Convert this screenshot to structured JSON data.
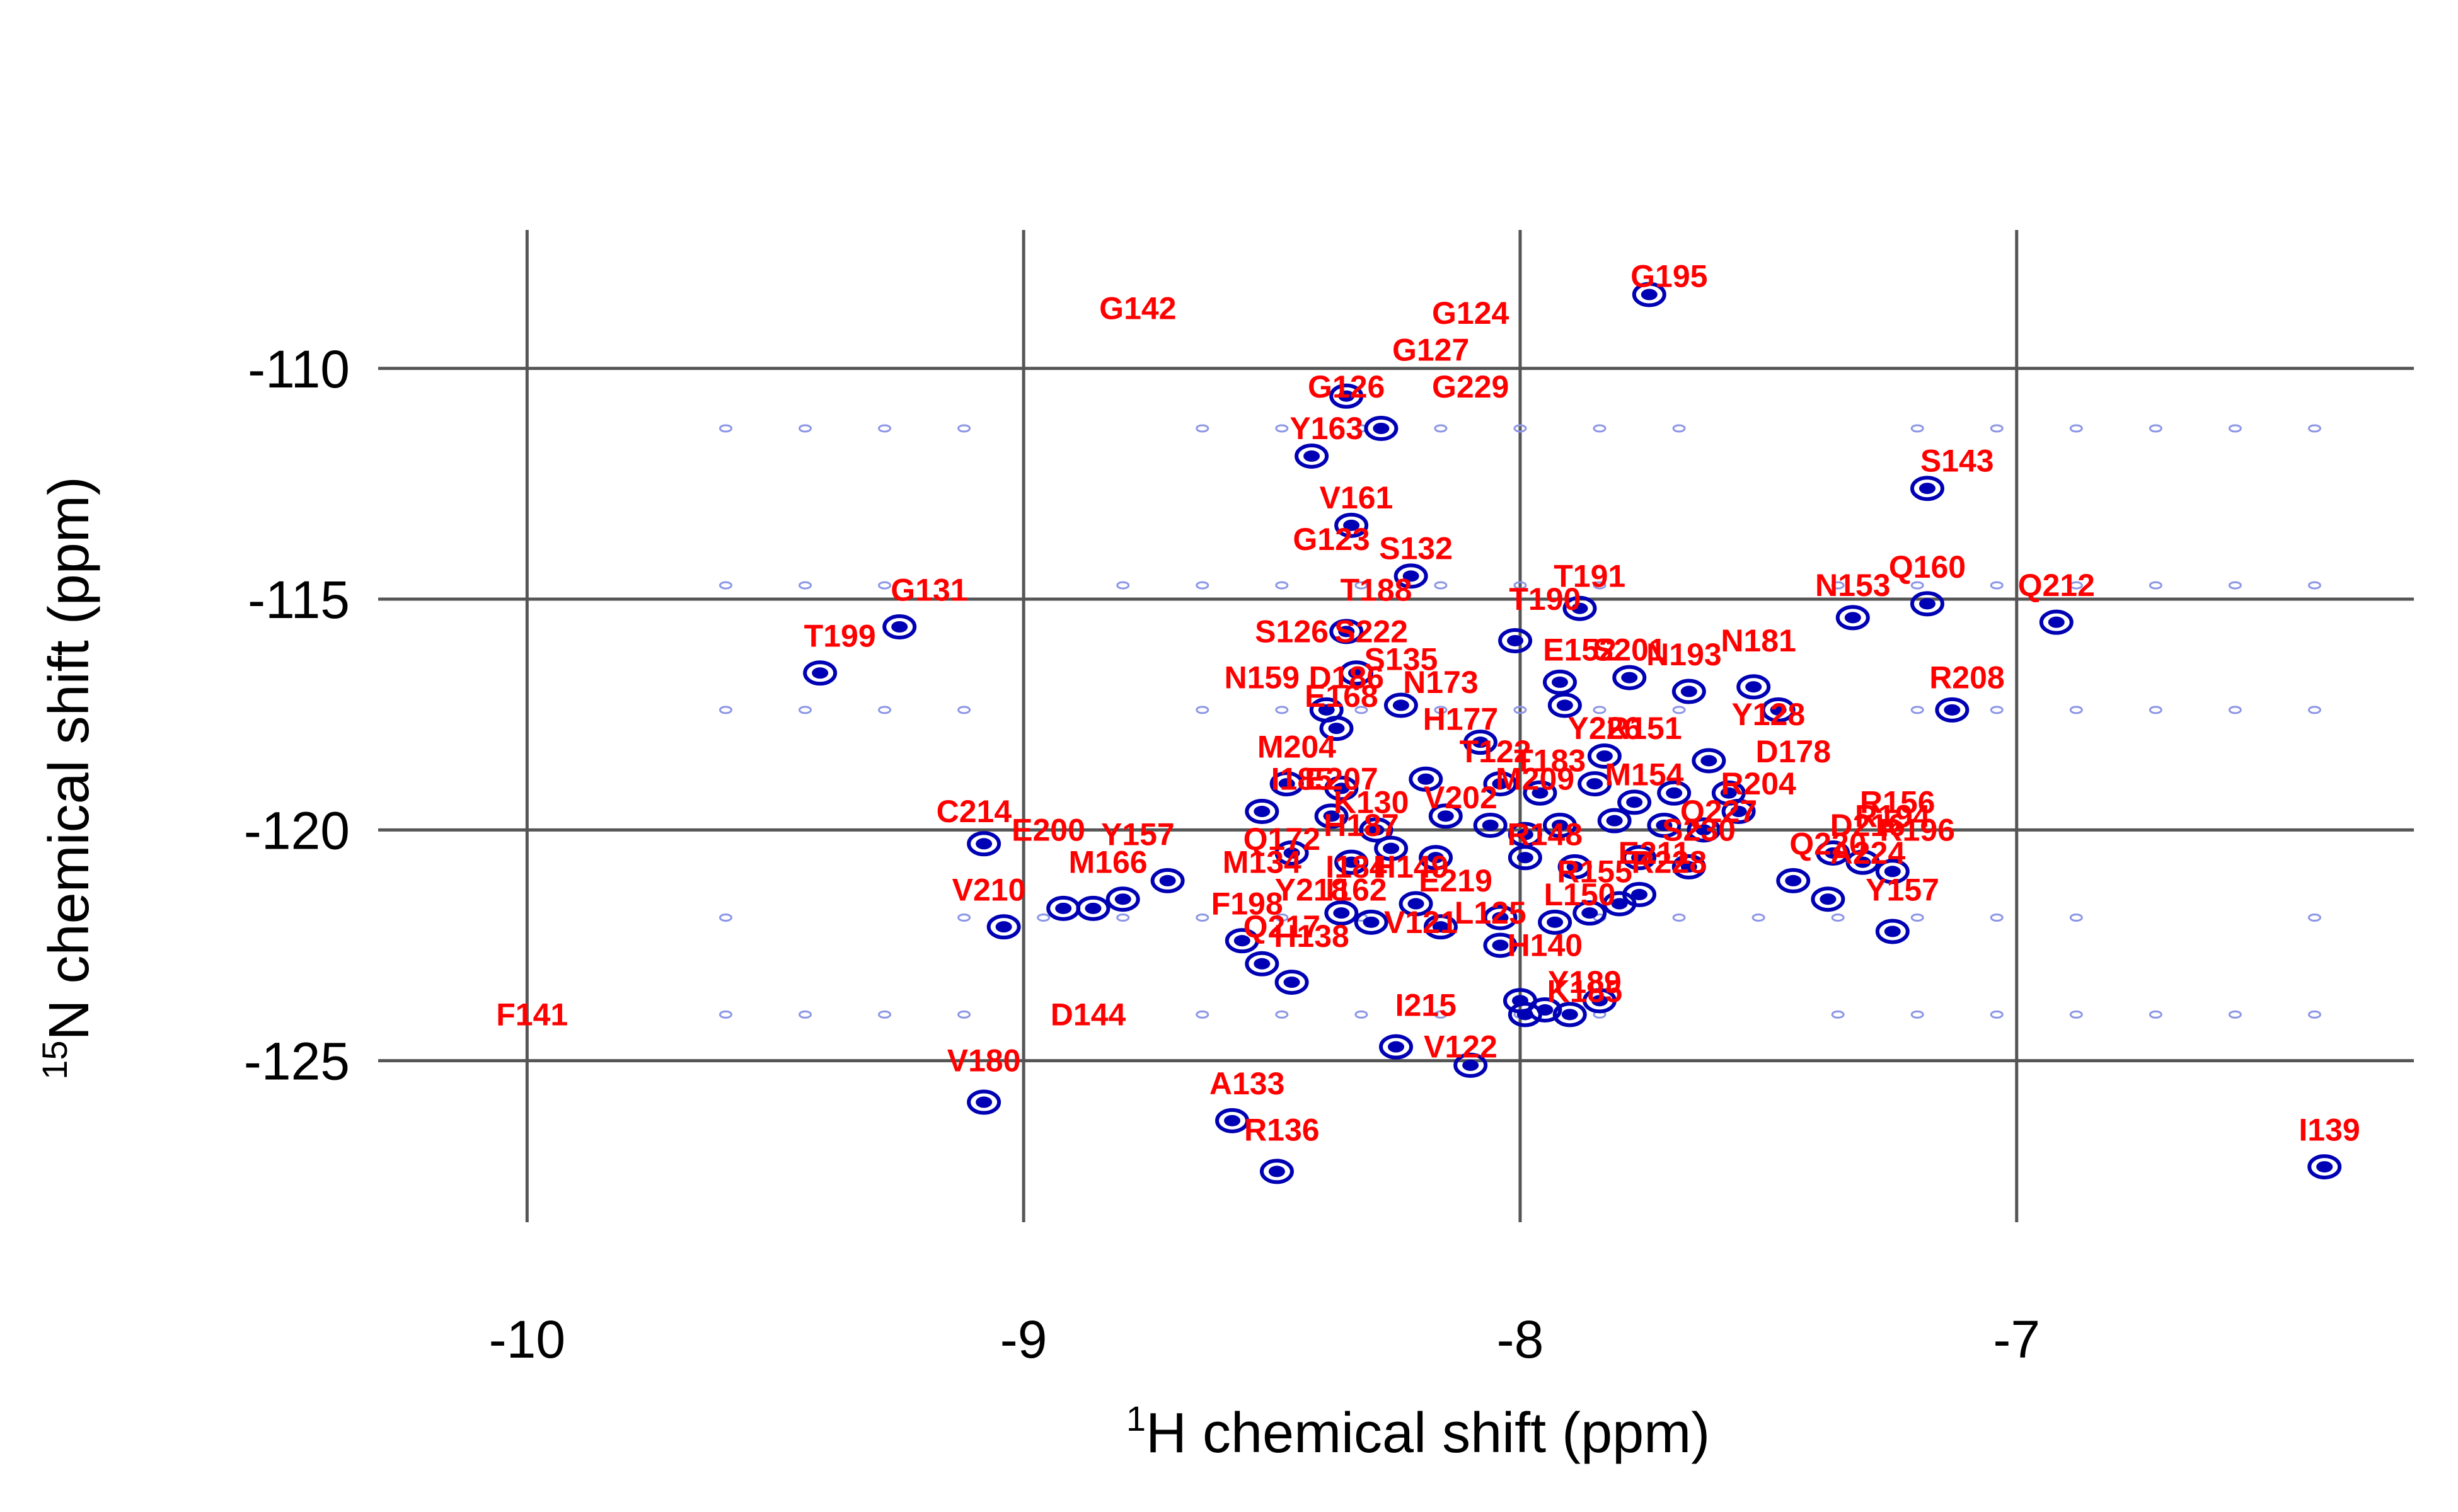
{
  "chart_data": {
    "type": "scatter",
    "xlabel": {
      "sup": "1",
      "text": "H chemical shift (ppm)"
    },
    "ylabel": {
      "sup": "15",
      "text": "N chemical shift (ppm)"
    },
    "xlim": [
      -10.3,
      -6.2
    ],
    "ylim": [
      -128.5,
      -107.0
    ],
    "x_ticks": [
      -10,
      -9,
      -8,
      -7
    ],
    "x_tick_labels": [
      "-10",
      "-9",
      "-8",
      "-7"
    ],
    "y_ticks": [
      -110,
      -115,
      -120,
      -125
    ],
    "y_tick_labels": [
      "-110",
      "-115",
      "-120",
      "-125"
    ],
    "grid": true,
    "colors": {
      "peak": "#0000b4",
      "noise": "#8c96e6",
      "label": "#ff0000",
      "grid": "#555555"
    },
    "labels": [
      {
        "text": "G195",
        "x": -7.7,
        "y": -108.0
      },
      {
        "text": "G142",
        "x": -8.77,
        "y": -108.7
      },
      {
        "text": "G124",
        "x": -8.1,
        "y": -108.8
      },
      {
        "text": "G127",
        "x": -8.18,
        "y": -109.6
      },
      {
        "text": "G126",
        "x": -8.35,
        "y": -110.4
      },
      {
        "text": "G229",
        "x": -8.1,
        "y": -110.4
      },
      {
        "text": "Y163",
        "x": -8.39,
        "y": -111.3
      },
      {
        "text": "S143",
        "x": -7.12,
        "y": -112.0
      },
      {
        "text": "V161",
        "x": -8.33,
        "y": -112.8
      },
      {
        "text": "G123",
        "x": -8.38,
        "y": -113.7
      },
      {
        "text": "S132",
        "x": -8.21,
        "y": -113.9
      },
      {
        "text": "T191",
        "x": -7.86,
        "y": -114.5
      },
      {
        "text": "Q160",
        "x": -7.18,
        "y": -114.3
      },
      {
        "text": "N153",
        "x": -7.33,
        "y": -114.7
      },
      {
        "text": "Q212",
        "x": -6.92,
        "y": -114.7
      },
      {
        "text": "G131",
        "x": -9.19,
        "y": -114.8
      },
      {
        "text": "T188",
        "x": -8.29,
        "y": -114.8
      },
      {
        "text": "T190",
        "x": -7.95,
        "y": -115.0
      },
      {
        "text": "T199",
        "x": -9.37,
        "y": -115.8
      },
      {
        "text": "S126",
        "x": -8.46,
        "y": -115.7
      },
      {
        "text": "S222",
        "x": -8.3,
        "y": -115.7
      },
      {
        "text": "S135",
        "x": -8.24,
        "y": -116.3
      },
      {
        "text": "E152",
        "x": -7.88,
        "y": -116.1
      },
      {
        "text": "S201",
        "x": -7.78,
        "y": -116.1
      },
      {
        "text": "N193",
        "x": -7.67,
        "y": -116.2
      },
      {
        "text": "N181",
        "x": -7.52,
        "y": -115.9
      },
      {
        "text": "N159",
        "x": -8.52,
        "y": -116.7
      },
      {
        "text": "D186",
        "x": -8.35,
        "y": -116.7
      },
      {
        "text": "N173",
        "x": -8.16,
        "y": -116.8
      },
      {
        "text": "E168",
        "x": -8.36,
        "y": -117.1
      },
      {
        "text": "R208",
        "x": -7.1,
        "y": -116.7
      },
      {
        "text": "H177",
        "x": -8.12,
        "y": -117.6
      },
      {
        "text": "Y128",
        "x": -7.5,
        "y": -117.5
      },
      {
        "text": "Y226",
        "x": -7.83,
        "y": -117.8
      },
      {
        "text": "R151",
        "x": -7.75,
        "y": -117.8
      },
      {
        "text": "M204",
        "x": -8.45,
        "y": -118.2
      },
      {
        "text": "D178",
        "x": -7.45,
        "y": -118.3
      },
      {
        "text": "T122",
        "x": -8.05,
        "y": -118.3
      },
      {
        "text": "T183",
        "x": -7.94,
        "y": -118.5
      },
      {
        "text": "I185",
        "x": -8.44,
        "y": -118.9
      },
      {
        "text": "E207",
        "x": -8.36,
        "y": -118.9
      },
      {
        "text": "M209",
        "x": -7.97,
        "y": -118.9
      },
      {
        "text": "M154",
        "x": -7.75,
        "y": -118.8
      },
      {
        "text": "R204",
        "x": -7.52,
        "y": -119.0
      },
      {
        "text": "K130",
        "x": -8.3,
        "y": -119.4
      },
      {
        "text": "V202",
        "x": -8.12,
        "y": -119.3
      },
      {
        "text": "R156",
        "x": -7.24,
        "y": -119.4
      },
      {
        "text": "C214",
        "x": -9.1,
        "y": -119.6
      },
      {
        "text": "Q227",
        "x": -7.6,
        "y": -119.6
      },
      {
        "text": "R194",
        "x": -7.25,
        "y": -119.7
      },
      {
        "text": "E200",
        "x": -8.95,
        "y": -120.0
      },
      {
        "text": "H187",
        "x": -8.32,
        "y": -119.9
      },
      {
        "text": "D216",
        "x": -7.3,
        "y": -119.9
      },
      {
        "text": "R196",
        "x": -7.2,
        "y": -120.0
      },
      {
        "text": "Y157",
        "x": -8.77,
        "y": -120.1
      },
      {
        "text": "Q172",
        "x": -8.48,
        "y": -120.2
      },
      {
        "text": "R148",
        "x": -7.95,
        "y": -120.1
      },
      {
        "text": "S230",
        "x": -7.64,
        "y": -120.0
      },
      {
        "text": "Q220",
        "x": -7.38,
        "y": -120.3
      },
      {
        "text": "A224",
        "x": -7.3,
        "y": -120.5
      },
      {
        "text": "E211",
        "x": -7.73,
        "y": -120.5
      },
      {
        "text": "M134",
        "x": -8.52,
        "y": -120.7
      },
      {
        "text": "M166",
        "x": -8.83,
        "y": -120.7
      },
      {
        "text": "I184",
        "x": -8.33,
        "y": -120.8
      },
      {
        "text": "H149",
        "x": -8.22,
        "y": -120.8
      },
      {
        "text": "R228",
        "x": -7.7,
        "y": -120.7
      },
      {
        "text": "R155",
        "x": -7.85,
        "y": -120.9
      },
      {
        "text": "E219",
        "x": -8.13,
        "y": -121.1
      },
      {
        "text": "V210",
        "x": -9.07,
        "y": -121.3
      },
      {
        "text": "Y218",
        "x": -8.42,
        "y": -121.3
      },
      {
        "text": "I162",
        "x": -8.33,
        "y": -121.3
      },
      {
        "text": "Y157",
        "x": -7.23,
        "y": -121.3
      },
      {
        "text": "L150",
        "x": -7.88,
        "y": -121.4
      },
      {
        "text": "F198",
        "x": -8.55,
        "y": -121.6
      },
      {
        "text": "L125",
        "x": -8.06,
        "y": -121.8
      },
      {
        "text": "V121",
        "x": -8.2,
        "y": -122.0
      },
      {
        "text": "Q217",
        "x": -8.48,
        "y": -122.1
      },
      {
        "text": "H138",
        "x": -8.42,
        "y": -122.3
      },
      {
        "text": "H140",
        "x": -7.95,
        "y": -122.5
      },
      {
        "text": "Y189",
        "x": -7.87,
        "y": -123.3
      },
      {
        "text": "K185",
        "x": -7.87,
        "y": -123.5
      },
      {
        "text": "F141",
        "x": -9.99,
        "y": -124.0
      },
      {
        "text": "D144",
        "x": -8.87,
        "y": -124.0
      },
      {
        "text": "I215",
        "x": -8.19,
        "y": -123.8
      },
      {
        "text": "V122",
        "x": -8.12,
        "y": -124.7
      },
      {
        "text": "V180",
        "x": -9.08,
        "y": -125.0
      },
      {
        "text": "A133",
        "x": -8.55,
        "y": -125.5
      },
      {
        "text": "R136",
        "x": -8.48,
        "y": -126.5
      },
      {
        "text": "I139",
        "x": -6.37,
        "y": -126.5
      }
    ],
    "peaks": [
      [
        -7.74,
        -108.4
      ],
      [
        -8.35,
        -110.6
      ],
      [
        -8.28,
        -111.3
      ],
      [
        -8.42,
        -111.9
      ],
      [
        -7.18,
        -112.6
      ],
      [
        -8.34,
        -113.4
      ],
      [
        -8.22,
        -114.5
      ],
      [
        -7.88,
        -115.2
      ],
      [
        -7.33,
        -115.4
      ],
      [
        -7.18,
        -115.1
      ],
      [
        -6.92,
        -115.5
      ],
      [
        -9.25,
        -115.6
      ],
      [
        -9.41,
        -116.6
      ],
      [
        -8.35,
        -115.7
      ],
      [
        -8.01,
        -115.9
      ],
      [
        -7.92,
        -116.8
      ],
      [
        -7.78,
        -116.7
      ],
      [
        -7.66,
        -117.0
      ],
      [
        -7.53,
        -116.9
      ],
      [
        -7.48,
        -117.4
      ],
      [
        -8.39,
        -117.4
      ],
      [
        -8.33,
        -116.6
      ],
      [
        -8.24,
        -117.3
      ],
      [
        -7.13,
        -117.4
      ],
      [
        -8.37,
        -117.8
      ],
      [
        -8.08,
        -118.1
      ],
      [
        -7.83,
        -118.4
      ],
      [
        -7.62,
        -118.5
      ],
      [
        -7.91,
        -117.3
      ],
      [
        -8.47,
        -119.0
      ],
      [
        -8.36,
        -119.1
      ],
      [
        -8.19,
        -118.9
      ],
      [
        -8.04,
        -119.0
      ],
      [
        -7.96,
        -119.2
      ],
      [
        -7.85,
        -119.0
      ],
      [
        -7.77,
        -119.4
      ],
      [
        -7.69,
        -119.2
      ],
      [
        -7.58,
        -119.2
      ],
      [
        -7.56,
        -119.6
      ],
      [
        -8.52,
        -119.6
      ],
      [
        -8.38,
        -119.7
      ],
      [
        -8.29,
        -120.0
      ],
      [
        -8.15,
        -119.7
      ],
      [
        -8.06,
        -119.9
      ],
      [
        -7.99,
        -120.1
      ],
      [
        -7.92,
        -119.9
      ],
      [
        -7.81,
        -119.8
      ],
      [
        -7.71,
        -119.9
      ],
      [
        -7.63,
        -120.0
      ],
      [
        -9.08,
        -120.3
      ],
      [
        -8.46,
        -120.5
      ],
      [
        -8.34,
        -120.7
      ],
      [
        -8.26,
        -120.4
      ],
      [
        -8.17,
        -120.6
      ],
      [
        -7.99,
        -120.6
      ],
      [
        -7.89,
        -120.8
      ],
      [
        -7.76,
        -120.6
      ],
      [
        -7.66,
        -120.8
      ],
      [
        -7.37,
        -120.5
      ],
      [
        -7.31,
        -120.7
      ],
      [
        -7.25,
        -120.9
      ],
      [
        -8.71,
        -121.1
      ],
      [
        -8.92,
        -121.7
      ],
      [
        -8.86,
        -121.7
      ],
      [
        -8.8,
        -121.5
      ],
      [
        -8.36,
        -121.8
      ],
      [
        -8.3,
        -122.0
      ],
      [
        -8.21,
        -121.6
      ],
      [
        -8.16,
        -122.1
      ],
      [
        -8.04,
        -121.9
      ],
      [
        -7.93,
        -122.0
      ],
      [
        -7.86,
        -121.8
      ],
      [
        -7.8,
        -121.6
      ],
      [
        -7.76,
        -121.4
      ],
      [
        -7.45,
        -121.1
      ],
      [
        -7.38,
        -121.5
      ],
      [
        -7.25,
        -122.2
      ],
      [
        -9.04,
        -122.1
      ],
      [
        -8.56,
        -122.4
      ],
      [
        -8.52,
        -122.9
      ],
      [
        -8.46,
        -123.3
      ],
      [
        -8.04,
        -122.5
      ],
      [
        -8.0,
        -123.7
      ],
      [
        -7.95,
        -123.9
      ],
      [
        -7.9,
        -124.0
      ],
      [
        -7.84,
        -123.7
      ],
      [
        -7.99,
        -124.0
      ],
      [
        -8.25,
        -124.7
      ],
      [
        -8.1,
        -125.1
      ],
      [
        -9.08,
        -125.9
      ],
      [
        -8.58,
        -126.3
      ],
      [
        -8.49,
        -127.4
      ],
      [
        -6.38,
        -127.3
      ]
    ]
  }
}
